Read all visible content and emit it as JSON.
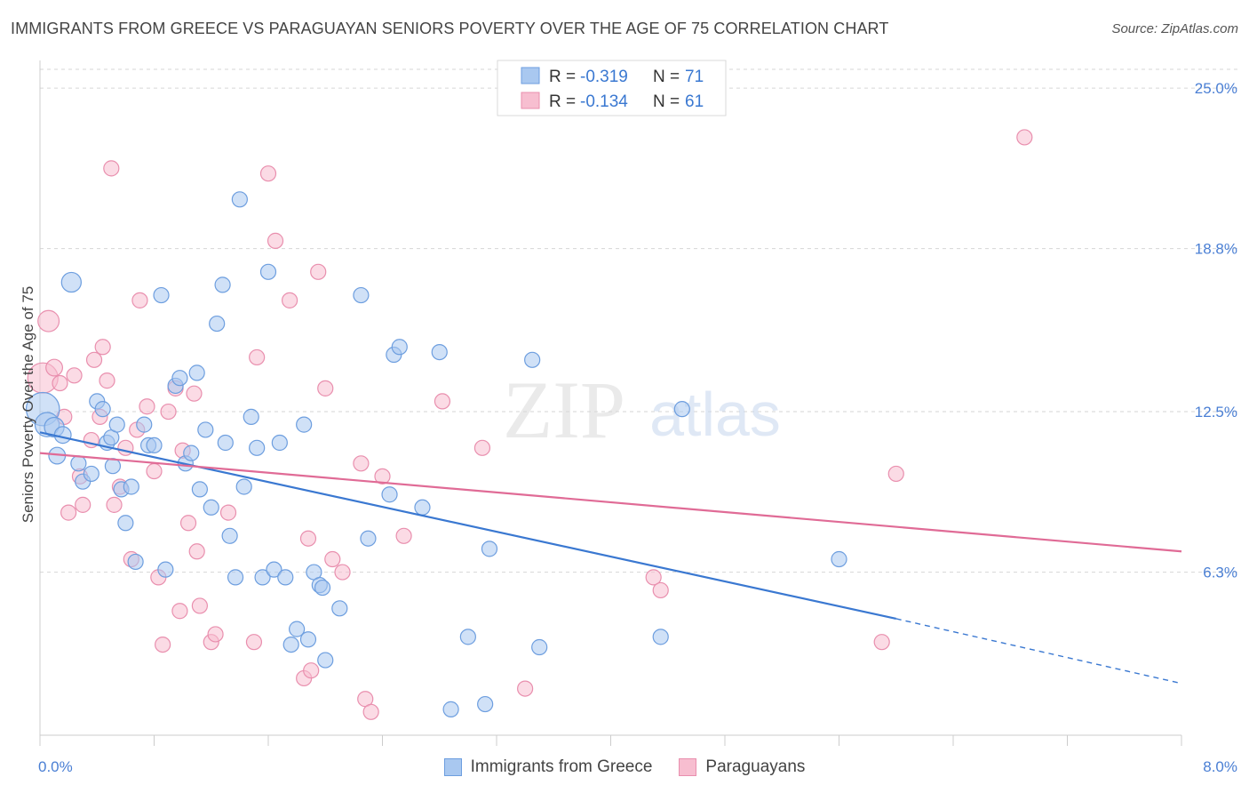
{
  "title": "IMMIGRANTS FROM GREECE VS PARAGUAYAN SENIORS POVERTY OVER THE AGE OF 75 CORRELATION CHART",
  "source": "Source: ZipAtlas.com",
  "watermark": {
    "zip": "ZIP",
    "atlas": "atlas"
  },
  "colors": {
    "blue_fill": "#a9c8f0",
    "blue_stroke": "#6d9edf",
    "blue_line": "#3a78d1",
    "pink_fill": "#f7bed0",
    "pink_stroke": "#e98fae",
    "pink_line": "#e06b96",
    "tick_text": "#4a7fd4",
    "grid": "#d6d6d6"
  },
  "legend": {
    "r_label": "R =",
    "n_label": "N =",
    "rows": [
      {
        "r": "-0.319",
        "n": "71"
      },
      {
        "r": "-0.134",
        "n": "61"
      }
    ]
  },
  "chart_data": {
    "type": "scatter",
    "xlabel": "",
    "ylabel": "Seniors Poverty Over the Age of 75",
    "xlim": [
      0.0,
      8.0
    ],
    "ylim": [
      0.0,
      26.0
    ],
    "x_tick_labels": [
      {
        "v": 0.0,
        "label": "0.0%"
      },
      {
        "v": 8.0,
        "label": "8.0%"
      }
    ],
    "y_ticks": [
      {
        "v": 6.3,
        "label": "6.3%"
      },
      {
        "v": 12.5,
        "label": "12.5%"
      },
      {
        "v": 18.8,
        "label": "18.8%"
      },
      {
        "v": 25.0,
        "label": "25.0%"
      }
    ],
    "grid": "horizontal dashed",
    "legend_position": "top-center",
    "series": [
      {
        "name": "Immigrants from Greece",
        "color": "blue",
        "trend": {
          "x0": 0.0,
          "y0": 11.7,
          "x1": 6.0,
          "y1": 4.5,
          "dash_to_x": 8.0,
          "dash_to_y": 2.0
        },
        "points": [
          {
            "x": 0.02,
            "y": 12.6,
            "s": 22
          },
          {
            "x": 0.05,
            "y": 12.0,
            "s": 16
          },
          {
            "x": 0.1,
            "y": 11.9,
            "s": 13
          },
          {
            "x": 0.16,
            "y": 11.6,
            "s": 11
          },
          {
            "x": 0.22,
            "y": 17.5,
            "s": 13
          },
          {
            "x": 0.12,
            "y": 10.8,
            "s": 11
          },
          {
            "x": 0.27,
            "y": 10.5,
            "s": 10
          },
          {
            "x": 0.3,
            "y": 9.8,
            "s": 10
          },
          {
            "x": 0.36,
            "y": 10.1,
            "s": 10
          },
          {
            "x": 0.4,
            "y": 12.9,
            "s": 10
          },
          {
            "x": 0.44,
            "y": 12.6,
            "s": 10
          },
          {
            "x": 0.47,
            "y": 11.3,
            "s": 10
          },
          {
            "x": 0.5,
            "y": 11.5,
            "s": 10
          },
          {
            "x": 0.51,
            "y": 10.4,
            "s": 10
          },
          {
            "x": 0.54,
            "y": 12.0,
            "s": 10
          },
          {
            "x": 0.57,
            "y": 9.5,
            "s": 10
          },
          {
            "x": 0.6,
            "y": 8.2,
            "s": 10
          },
          {
            "x": 0.64,
            "y": 9.6,
            "s": 10
          },
          {
            "x": 0.67,
            "y": 6.7,
            "s": 10
          },
          {
            "x": 0.73,
            "y": 12.0,
            "s": 10
          },
          {
            "x": 0.76,
            "y": 11.2,
            "s": 10
          },
          {
            "x": 0.8,
            "y": 11.2,
            "s": 10
          },
          {
            "x": 0.85,
            "y": 17.0,
            "s": 10
          },
          {
            "x": 0.88,
            "y": 6.4,
            "s": 10
          },
          {
            "x": 0.95,
            "y": 13.5,
            "s": 10
          },
          {
            "x": 0.98,
            "y": 13.8,
            "s": 10
          },
          {
            "x": 1.02,
            "y": 10.5,
            "s": 10
          },
          {
            "x": 1.06,
            "y": 10.9,
            "s": 10
          },
          {
            "x": 1.1,
            "y": 14.0,
            "s": 10
          },
          {
            "x": 1.12,
            "y": 9.5,
            "s": 10
          },
          {
            "x": 1.16,
            "y": 11.8,
            "s": 10
          },
          {
            "x": 1.2,
            "y": 8.8,
            "s": 10
          },
          {
            "x": 1.24,
            "y": 15.9,
            "s": 10
          },
          {
            "x": 1.28,
            "y": 17.4,
            "s": 10
          },
          {
            "x": 1.3,
            "y": 11.3,
            "s": 10
          },
          {
            "x": 1.33,
            "y": 7.7,
            "s": 10
          },
          {
            "x": 1.37,
            "y": 6.1,
            "s": 10
          },
          {
            "x": 1.4,
            "y": 20.7,
            "s": 10
          },
          {
            "x": 1.43,
            "y": 9.6,
            "s": 10
          },
          {
            "x": 1.48,
            "y": 12.3,
            "s": 10
          },
          {
            "x": 1.52,
            "y": 11.1,
            "s": 10
          },
          {
            "x": 1.56,
            "y": 6.1,
            "s": 10
          },
          {
            "x": 1.6,
            "y": 17.9,
            "s": 10
          },
          {
            "x": 1.64,
            "y": 6.4,
            "s": 10
          },
          {
            "x": 1.68,
            "y": 11.3,
            "s": 10
          },
          {
            "x": 1.72,
            "y": 6.1,
            "s": 10
          },
          {
            "x": 1.76,
            "y": 3.5,
            "s": 10
          },
          {
            "x": 1.8,
            "y": 4.1,
            "s": 10
          },
          {
            "x": 1.85,
            "y": 12.0,
            "s": 10
          },
          {
            "x": 1.88,
            "y": 3.7,
            "s": 10
          },
          {
            "x": 1.92,
            "y": 6.3,
            "s": 10
          },
          {
            "x": 1.96,
            "y": 5.8,
            "s": 10
          },
          {
            "x": 1.98,
            "y": 5.7,
            "s": 10
          },
          {
            "x": 2.0,
            "y": 2.9,
            "s": 10
          },
          {
            "x": 2.1,
            "y": 4.9,
            "s": 10
          },
          {
            "x": 2.25,
            "y": 17.0,
            "s": 10
          },
          {
            "x": 2.3,
            "y": 7.6,
            "s": 10
          },
          {
            "x": 2.45,
            "y": 9.3,
            "s": 10
          },
          {
            "x": 2.48,
            "y": 14.7,
            "s": 10
          },
          {
            "x": 2.52,
            "y": 15.0,
            "s": 10
          },
          {
            "x": 2.68,
            "y": 8.8,
            "s": 10
          },
          {
            "x": 2.8,
            "y": 14.8,
            "s": 10
          },
          {
            "x": 2.88,
            "y": 1.0,
            "s": 10
          },
          {
            "x": 3.0,
            "y": 3.8,
            "s": 10
          },
          {
            "x": 3.12,
            "y": 1.2,
            "s": 10
          },
          {
            "x": 3.15,
            "y": 7.2,
            "s": 10
          },
          {
            "x": 3.45,
            "y": 14.5,
            "s": 10
          },
          {
            "x": 3.5,
            "y": 3.4,
            "s": 10
          },
          {
            "x": 4.35,
            "y": 3.8,
            "s": 10
          },
          {
            "x": 4.5,
            "y": 12.6,
            "s": 10
          },
          {
            "x": 5.6,
            "y": 6.8,
            "s": 10
          }
        ]
      },
      {
        "name": "Paraguayans",
        "color": "pink",
        "trend": {
          "x0": 0.0,
          "y0": 10.9,
          "x1": 8.0,
          "y1": 7.1
        },
        "points": [
          {
            "x": 0.02,
            "y": 13.8,
            "s": 20
          },
          {
            "x": 0.06,
            "y": 16.0,
            "s": 14
          },
          {
            "x": 0.1,
            "y": 14.2,
            "s": 11
          },
          {
            "x": 0.14,
            "y": 13.6,
            "s": 10
          },
          {
            "x": 0.17,
            "y": 12.3,
            "s": 10
          },
          {
            "x": 0.2,
            "y": 8.6,
            "s": 10
          },
          {
            "x": 0.24,
            "y": 13.9,
            "s": 10
          },
          {
            "x": 0.28,
            "y": 10.0,
            "s": 10
          },
          {
            "x": 0.3,
            "y": 8.9,
            "s": 10
          },
          {
            "x": 0.36,
            "y": 11.4,
            "s": 10
          },
          {
            "x": 0.38,
            "y": 14.5,
            "s": 10
          },
          {
            "x": 0.42,
            "y": 12.3,
            "s": 10
          },
          {
            "x": 0.44,
            "y": 15.0,
            "s": 10
          },
          {
            "x": 0.47,
            "y": 13.7,
            "s": 10
          },
          {
            "x": 0.5,
            "y": 21.9,
            "s": 10
          },
          {
            "x": 0.52,
            "y": 8.9,
            "s": 10
          },
          {
            "x": 0.56,
            "y": 9.6,
            "s": 10
          },
          {
            "x": 0.6,
            "y": 11.1,
            "s": 10
          },
          {
            "x": 0.64,
            "y": 6.8,
            "s": 10
          },
          {
            "x": 0.68,
            "y": 11.8,
            "s": 10
          },
          {
            "x": 0.7,
            "y": 16.8,
            "s": 10
          },
          {
            "x": 0.75,
            "y": 12.7,
            "s": 10
          },
          {
            "x": 0.8,
            "y": 10.2,
            "s": 10
          },
          {
            "x": 0.83,
            "y": 6.1,
            "s": 10
          },
          {
            "x": 0.86,
            "y": 3.5,
            "s": 10
          },
          {
            "x": 0.9,
            "y": 12.5,
            "s": 10
          },
          {
            "x": 0.95,
            "y": 13.4,
            "s": 10
          },
          {
            "x": 0.98,
            "y": 4.8,
            "s": 10
          },
          {
            "x": 1.0,
            "y": 11.0,
            "s": 10
          },
          {
            "x": 1.04,
            "y": 8.2,
            "s": 10
          },
          {
            "x": 1.08,
            "y": 13.2,
            "s": 10
          },
          {
            "x": 1.1,
            "y": 7.1,
            "s": 10
          },
          {
            "x": 1.12,
            "y": 5.0,
            "s": 10
          },
          {
            "x": 1.2,
            "y": 3.6,
            "s": 10
          },
          {
            "x": 1.23,
            "y": 3.9,
            "s": 10
          },
          {
            "x": 1.32,
            "y": 8.6,
            "s": 10
          },
          {
            "x": 1.5,
            "y": 3.6,
            "s": 10
          },
          {
            "x": 1.52,
            "y": 14.6,
            "s": 10
          },
          {
            "x": 1.6,
            "y": 21.7,
            "s": 10
          },
          {
            "x": 1.65,
            "y": 19.1,
            "s": 10
          },
          {
            "x": 1.75,
            "y": 16.8,
            "s": 10
          },
          {
            "x": 1.85,
            "y": 2.2,
            "s": 10
          },
          {
            "x": 1.88,
            "y": 7.6,
            "s": 10
          },
          {
            "x": 1.9,
            "y": 2.5,
            "s": 10
          },
          {
            "x": 1.95,
            "y": 17.9,
            "s": 10
          },
          {
            "x": 2.0,
            "y": 13.4,
            "s": 10
          },
          {
            "x": 2.05,
            "y": 6.8,
            "s": 10
          },
          {
            "x": 2.12,
            "y": 6.3,
            "s": 10
          },
          {
            "x": 2.25,
            "y": 10.5,
            "s": 10
          },
          {
            "x": 2.28,
            "y": 1.4,
            "s": 10
          },
          {
            "x": 2.32,
            "y": 0.9,
            "s": 10
          },
          {
            "x": 2.4,
            "y": 10.0,
            "s": 10
          },
          {
            "x": 2.55,
            "y": 7.7,
            "s": 10
          },
          {
            "x": 2.82,
            "y": 12.9,
            "s": 10
          },
          {
            "x": 3.1,
            "y": 11.1,
            "s": 10
          },
          {
            "x": 3.4,
            "y": 1.8,
            "s": 10
          },
          {
            "x": 4.3,
            "y": 6.1,
            "s": 10
          },
          {
            "x": 4.35,
            "y": 5.6,
            "s": 10
          },
          {
            "x": 5.9,
            "y": 3.6,
            "s": 10
          },
          {
            "x": 6.0,
            "y": 10.1,
            "s": 10
          },
          {
            "x": 6.9,
            "y": 23.1,
            "s": 10
          }
        ]
      }
    ]
  },
  "bottom_legend": [
    "Immigrants from Greece",
    "Paraguayans"
  ]
}
